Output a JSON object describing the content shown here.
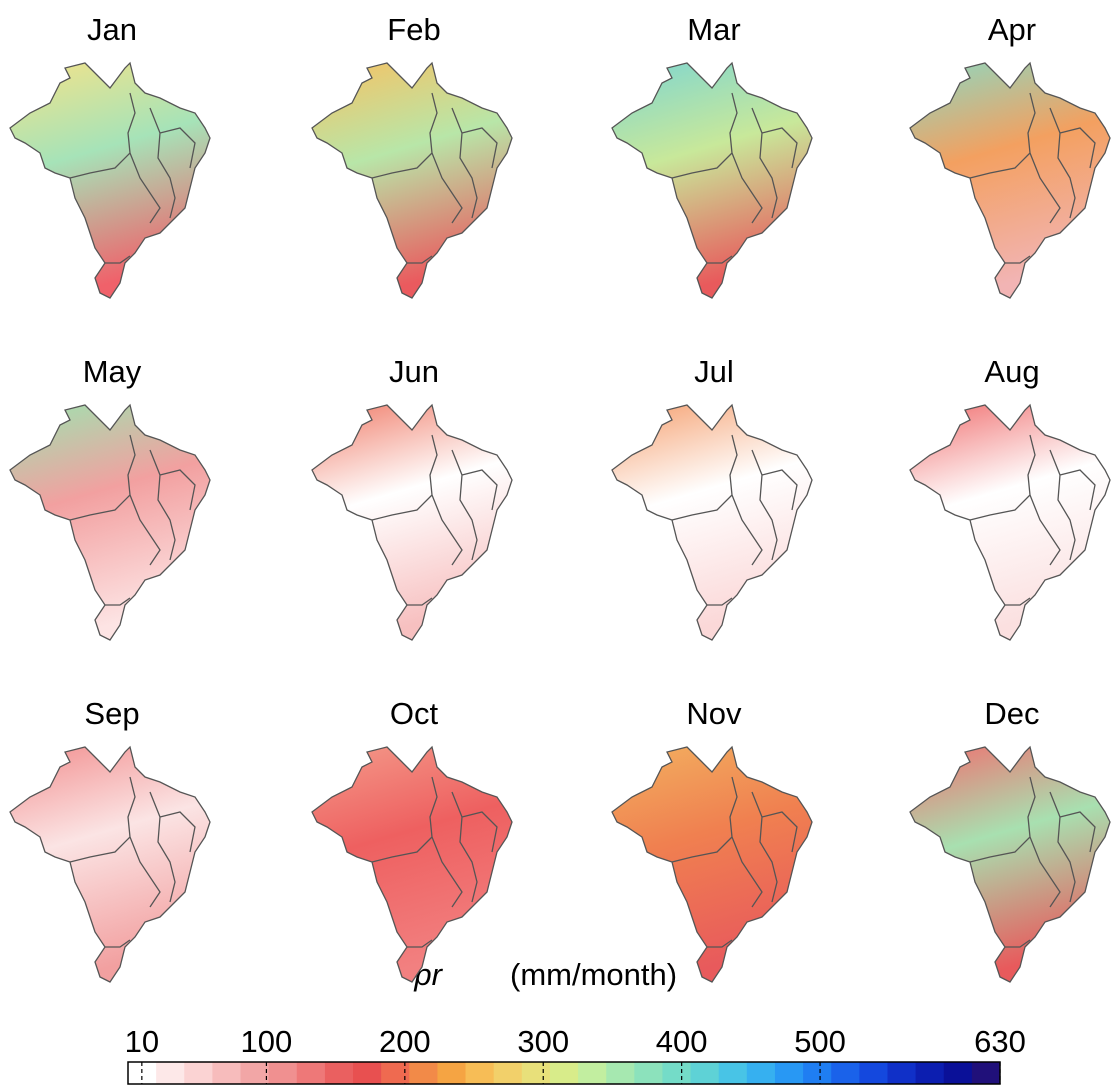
{
  "title_months": [
    "Jan",
    "Feb",
    "Mar",
    "Apr",
    "May",
    "Jun",
    "Jul",
    "Aug",
    "Sep",
    "Oct",
    "Nov",
    "Dec"
  ],
  "map_colors": [
    [
      "#f3e38a",
      "#a6e3b8",
      "#f0616a"
    ],
    [
      "#f6c264",
      "#b8e6a8",
      "#ea5a5e"
    ],
    [
      "#7fd6d0",
      "#c8e89a",
      "#e85a5c"
    ],
    [
      "#8ed8c0",
      "#f3a060",
      "#f2b4b4"
    ],
    [
      "#9ee3b0",
      "#f2a0a0",
      "#fde4e4"
    ],
    [
      "#f07d6a",
      "#ffffff",
      "#f7c0c0"
    ],
    [
      "#f5a070",
      "#ffffff",
      "#fbd8d8"
    ],
    [
      "#f07070",
      "#ffffff",
      "#fbe0e0"
    ],
    [
      "#f29090",
      "#fbe4e4",
      "#f2a0a0"
    ],
    [
      "#f49a8a",
      "#ee6060",
      "#f28080"
    ],
    [
      "#f2b060",
      "#f08050",
      "#e85a5c"
    ],
    [
      "#f07070",
      "#a8e0b0",
      "#e85a5c"
    ]
  ],
  "colorbar": {
    "label_var": "pr",
    "label_unit": "(mm/month)",
    "lim": [
      0,
      630
    ],
    "ticks": [
      10,
      100,
      200,
      300,
      400,
      500,
      630
    ],
    "colors": [
      "#ffffff",
      "#fde8e8",
      "#fbd3d3",
      "#f7bcbc",
      "#f2a6a6",
      "#f09090",
      "#ee7878",
      "#ea6060",
      "#e85050",
      "#ef6a50",
      "#f28a48",
      "#f5a443",
      "#f7bd56",
      "#f2d06a",
      "#e8e07a",
      "#d8ec8a",
      "#c2eea0",
      "#a6e8b0",
      "#8ce2bc",
      "#74dcc8",
      "#5ed2d6",
      "#48c4e6",
      "#36b0f0",
      "#2898f4",
      "#1f7ef2",
      "#1a62ea",
      "#1448de",
      "#1030c8",
      "#0c1eb0",
      "#0a1098",
      "#20107a"
    ]
  }
}
